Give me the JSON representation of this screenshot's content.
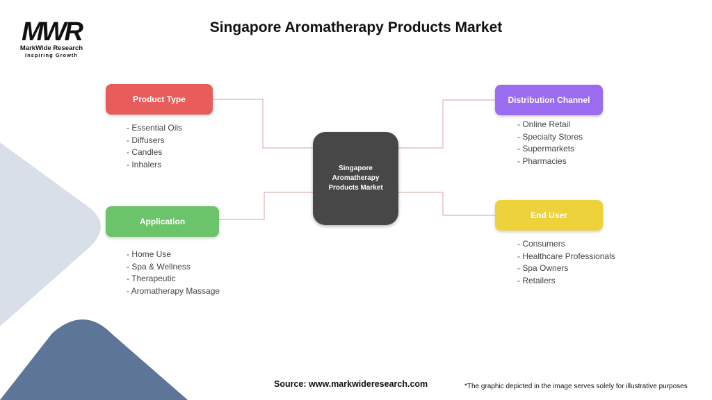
{
  "title": "Singapore Aromatherapy Products Market",
  "logo": {
    "mark": "MWR",
    "name": "MarkWide Research",
    "tagline": "Inspiring Growth"
  },
  "center": {
    "label": "Singapore Aromatherapy Products Market",
    "color": "#474747"
  },
  "segments": [
    {
      "label": "Product Type",
      "color": "#e85c5c",
      "items": [
        "- Essential Oils",
        "- Diffusers",
        "- Candles",
        "- Inhalers"
      ]
    },
    {
      "label": "Application",
      "color": "#6cc46a",
      "items": [
        "- Home Use",
        "- Spa & Wellness",
        "- Therapeutic",
        "- Aromatherapy Massage"
      ]
    },
    {
      "label": "Distribution Channel",
      "color": "#9b6cf0",
      "items": [
        "- Online Retail",
        "- Specialty Stores",
        "- Supermarkets",
        "- Pharmacies"
      ]
    },
    {
      "label": "End User",
      "color": "#eed23c",
      "items": [
        "- Consumers",
        "- Healthcare Professionals",
        "- Spa Owners",
        "- Retailers"
      ]
    }
  ],
  "footer": {
    "source": "Source: www.markwideresearch.com",
    "disclaimer": "*The graphic depicted in the image serves solely for illustrative purposes"
  }
}
